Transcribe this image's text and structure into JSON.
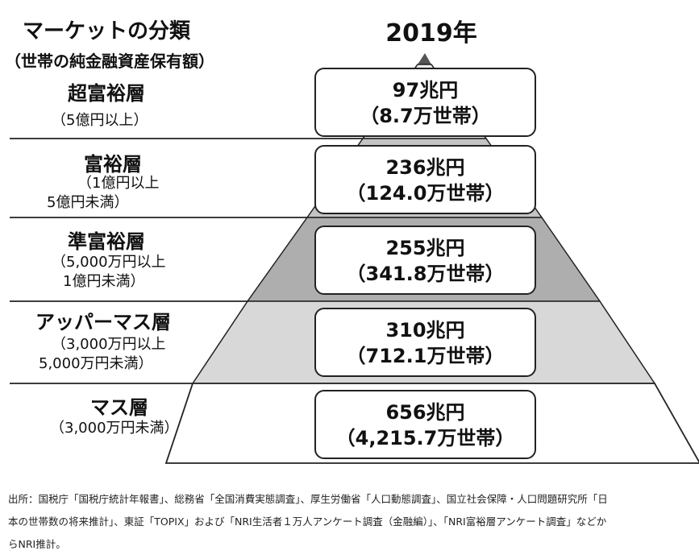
{
  "header": {
    "title": "マーケットの分類",
    "subtitle": "（世帯の純金融資産保有額）",
    "year": "2019年"
  },
  "colors": {
    "top_band": "#eeeeee",
    "upper_band": "#c4c4c4",
    "middle_band": "#aeaeae",
    "lower_band": "#d8d8d8",
    "base_band": "#ffffff",
    "line": "#222222"
  },
  "tiers": [
    {
      "name": "超富裕層",
      "note": [
        "（5億円以上）"
      ],
      "amount": "97兆円",
      "households": "（8.7万世帯）"
    },
    {
      "name": "富裕層",
      "note": [
        "（1億円以上",
        "5億円未満）"
      ],
      "amount": "236兆円",
      "households": "（124.0万世帯）"
    },
    {
      "name": "準富裕層",
      "note": [
        "（5,000万円以上",
        "1億円未満）"
      ],
      "amount": "255兆円",
      "households": "（341.8万世帯）"
    },
    {
      "name": "アッパーマス層",
      "note": [
        "（3,000万円以上",
        "5,000万円未満）"
      ],
      "amount": "310兆円",
      "households": "（712.1万世帯）"
    },
    {
      "name": "マス層",
      "note": [
        "（3,000万円未満）"
      ],
      "amount": "656兆円",
      "households": "（4,215.7万世帯）"
    }
  ],
  "source": {
    "line1": "出所：国税庁「国税庁統計年報書」、総務省「全国消費実態調査」、厚生労働省「人口動態調査」、国立社会保障・人口問題研究所「日",
    "line2": "本の世帯数の将来推計」、東証「TOPIX」および「NRI生活者１万人アンケート調査（金融編）」、「NRI富裕層アンケート調査」などか",
    "line3": "らNRI推計。"
  }
}
